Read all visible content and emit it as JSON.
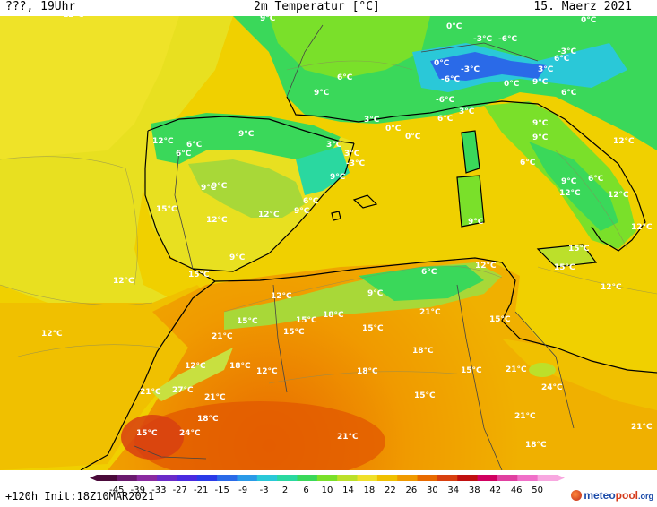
{
  "header": {
    "left": "???, 19Uhr",
    "title": "2m Temperatur [°C]",
    "date": "15. Maerz 2021"
  },
  "footer": {
    "run_info": "+120h Init:18Z10MAR2021",
    "logo_main": "meteo",
    "logo_accent": "pool",
    "logo_tld": ".org"
  },
  "legend": {
    "ticks": [
      "-45",
      "-39",
      "-33",
      "-27",
      "-21",
      "-15",
      "-9",
      "-3",
      "2",
      "6",
      "10",
      "14",
      "18",
      "22",
      "26",
      "30",
      "34",
      "38",
      "42",
      "46",
      "50"
    ],
    "colors": [
      "#4a0a3a",
      "#6a1a6e",
      "#8a2aa0",
      "#6a2ac8",
      "#4a2ae0",
      "#2a3ae8",
      "#2a6ae8",
      "#2a9ae8",
      "#2ac8d8",
      "#2ad8a0",
      "#3ad85a",
      "#7ae02a",
      "#bce02a",
      "#f0e02a",
      "#f0c000",
      "#f09a00",
      "#e86a00",
      "#d84010",
      "#c01010",
      "#d00060",
      "#e040a0",
      "#f070c8",
      "#f8a8e0"
    ]
  },
  "temperature_labels": [
    {
      "text": "12°C"
    },
    {
      "text": "9°C"
    },
    {
      "text": "0°C"
    },
    {
      "text": "0°C"
    },
    {
      "text": "-3°C"
    },
    {
      "text": "-6°C"
    },
    {
      "text": "-3°C"
    },
    {
      "text": "0°C"
    },
    {
      "text": "6°C"
    },
    {
      "text": "-3°C"
    },
    {
      "text": "-6°C"
    },
    {
      "text": "0°C"
    },
    {
      "text": "3°C"
    },
    {
      "text": "9°C"
    },
    {
      "text": "6°C"
    },
    {
      "text": "9°C"
    },
    {
      "text": "6°C"
    },
    {
      "text": "-6°C"
    },
    {
      "text": "9°C"
    },
    {
      "text": "3°C"
    },
    {
      "text": "0°C"
    },
    {
      "text": "6°C"
    },
    {
      "text": "3°C"
    },
    {
      "text": "9°C"
    },
    {
      "text": "9°C"
    },
    {
      "text": "0°C"
    },
    {
      "text": "12°C"
    },
    {
      "text": "6°C"
    },
    {
      "text": "3°C"
    },
    {
      "text": "12°C"
    },
    {
      "text": "6°C"
    },
    {
      "text": "3°C"
    },
    {
      "text": "-3°C"
    },
    {
      "text": "9°C"
    },
    {
      "text": "6°C"
    },
    {
      "text": "9°C"
    },
    {
      "text": "9°C"
    },
    {
      "text": "6°C"
    },
    {
      "text": "15°C"
    },
    {
      "text": "9°C"
    },
    {
      "text": "12°C"
    },
    {
      "text": "12°C"
    },
    {
      "text": "6°C"
    },
    {
      "text": "9°C"
    },
    {
      "text": "12°C"
    },
    {
      "text": "12°C"
    },
    {
      "text": "9°C"
    },
    {
      "text": "12°C"
    },
    {
      "text": "12°C"
    },
    {
      "text": "15°C"
    },
    {
      "text": "6°C"
    },
    {
      "text": "9°C"
    },
    {
      "text": "12°C"
    },
    {
      "text": "15°C"
    },
    {
      "text": "15°C"
    },
    {
      "text": "9°C"
    },
    {
      "text": "12°C"
    },
    {
      "text": "12°C"
    },
    {
      "text": "12°C"
    },
    {
      "text": "15°C"
    },
    {
      "text": "15°C"
    },
    {
      "text": "15°C"
    },
    {
      "text": "18°C"
    },
    {
      "text": "15°C"
    },
    {
      "text": "21°C"
    },
    {
      "text": "15°C"
    },
    {
      "text": "21°C"
    },
    {
      "text": "18°C"
    },
    {
      "text": "18°C"
    },
    {
      "text": "15°C"
    },
    {
      "text": "12°C"
    },
    {
      "text": "18°C"
    },
    {
      "text": "12°C"
    },
    {
      "text": "21°C"
    },
    {
      "text": "24°C"
    },
    {
      "text": "21°C"
    },
    {
      "text": "27°C"
    },
    {
      "text": "21°C"
    },
    {
      "text": "15°C"
    },
    {
      "text": "18°C"
    },
    {
      "text": "15°C"
    },
    {
      "text": "24°C"
    },
    {
      "text": "21°C"
    },
    {
      "text": "21°C"
    },
    {
      "text": "18°C"
    },
    {
      "text": "21°C"
    }
  ]
}
